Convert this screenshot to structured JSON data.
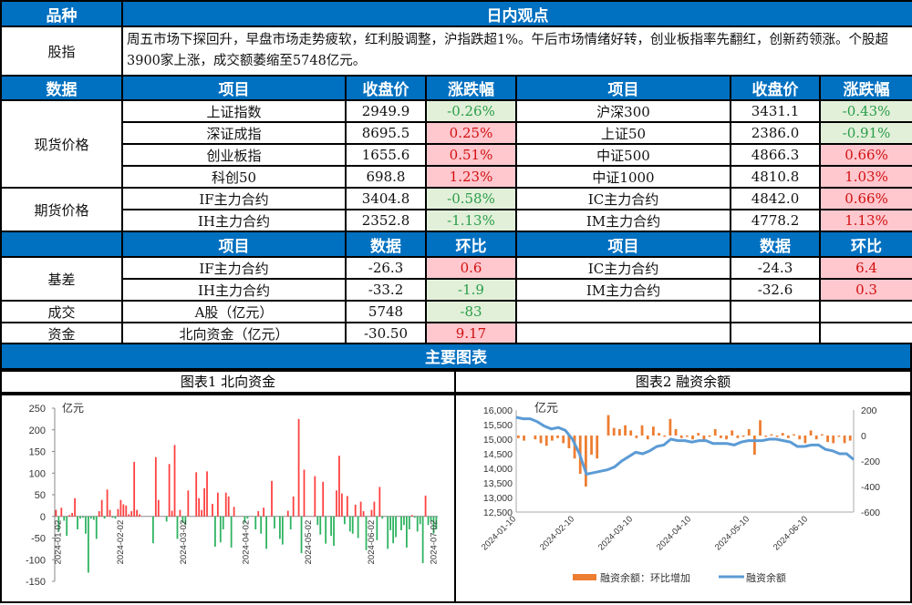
{
  "header": {
    "col1": "品种",
    "col2": "日内观点"
  },
  "view": {
    "label": "股指",
    "text": "周五市场下探回升，早盘市场走势疲软，红利股调整，沪指跌超1%。午后市场情绪好转，创业板指率先翻红，创新药领涨。个股超3900家上涨，成交额萎缩至5748亿元。"
  },
  "data_header": {
    "c1": "数据",
    "c2": "项目",
    "c3": "收盘价",
    "c4": "涨跌幅",
    "c5": "项目",
    "c6": "收盘价",
    "c7": "涨跌幅"
  },
  "spot": {
    "label": "现货价格",
    "rows": [
      {
        "a": "上证指数",
        "ap": "2949.9",
        "ac": "-0.26%",
        "b": "沪深300",
        "bp": "3431.1",
        "bc": "-0.43%"
      },
      {
        "a": "深证成指",
        "ap": "8695.5",
        "ac": "0.25%",
        "b": "上证50",
        "bp": "2386.0",
        "bc": "-0.91%"
      },
      {
        "a": "创业板指",
        "ap": "1655.6",
        "ac": "0.51%",
        "b": "中证500",
        "bp": "4866.3",
        "bc": "0.66%"
      },
      {
        "a": "科创50",
        "ap": "698.8",
        "ac": "1.23%",
        "b": "中证1000",
        "bp": "4810.8",
        "bc": "1.03%"
      }
    ]
  },
  "futures": {
    "label": "期货价格",
    "rows": [
      {
        "a": "IF主力合约",
        "ap": "3404.8",
        "ac": "-0.58%",
        "b": "IC主力合约",
        "bp": "4842.0",
        "bc": "0.66%"
      },
      {
        "a": "IH主力合约",
        "ap": "2352.8",
        "ac": "-1.13%",
        "b": "IM主力合约",
        "bp": "4778.2",
        "bc": "1.13%"
      }
    ]
  },
  "basis_header": {
    "c2": "项目",
    "c3": "数据",
    "c4": "环比",
    "c5": "项目",
    "c6": "数据",
    "c7": "环比"
  },
  "basis": {
    "label": "基差",
    "rows": [
      {
        "a": "IF主力合约",
        "av": "-26.3",
        "ac": "0.6",
        "b": "IC主力合约",
        "bv": "-24.3",
        "bc": "6.4"
      },
      {
        "a": "IH主力合约",
        "av": "-33.2",
        "ac": "-1.9",
        "b": "IM主力合约",
        "bv": "-32.6",
        "bc": "0.3"
      }
    ]
  },
  "volume": {
    "label": "成交",
    "item": "A股（亿元）",
    "value": "5748",
    "change": "-83"
  },
  "capital": {
    "label": "资金",
    "item": "北向资金（亿元）",
    "value": "-30.50",
    "change": "9.17"
  },
  "section_title": "主要图表",
  "chart_data": [
    {
      "type": "bar",
      "title": "图表1 北向资金",
      "ylabel": "亿元",
      "ylim": [
        -150,
        250
      ],
      "yticks": [
        250,
        200,
        150,
        100,
        50,
        0,
        -50,
        -100,
        -150
      ],
      "xticks": [
        "2024-01-02",
        "2024-02-02",
        "2024-03-02",
        "2024-04-02",
        "2024-05-02",
        "2024-06-02",
        "2024-07-02"
      ],
      "colors": {
        "pos": "#ff4040",
        "neg": "#2db360"
      },
      "values": [
        15,
        -35,
        20,
        -10,
        -45,
        3,
        8,
        42,
        -30,
        -5,
        -3,
        -40,
        -130,
        -5,
        -8,
        -52,
        12,
        38,
        -5,
        62,
        15,
        -3,
        -5,
        17,
        38,
        28,
        25,
        5,
        12,
        126,
        15,
        5,
        0,
        0,
        0,
        0,
        -62,
        137,
        38,
        0,
        0,
        -12,
        121,
        13,
        165,
        -52,
        15,
        -15,
        -20,
        60,
        0,
        0,
        102,
        42,
        15,
        65,
        104,
        0,
        29,
        -70,
        55,
        -60,
        -30,
        55,
        46,
        -72,
        22,
        0,
        0,
        0,
        -15,
        -5,
        0,
        0,
        -30,
        12,
        -40,
        20,
        -75,
        0,
        82,
        -28,
        0,
        -52,
        -65,
        0,
        13,
        -30,
        46,
        0,
        225,
        -85,
        108,
        0,
        0,
        0,
        93,
        -20,
        -42,
        80,
        -63,
        0,
        -45,
        -68,
        60,
        140,
        53,
        -18,
        47,
        -35,
        -40,
        27,
        -50,
        34,
        12,
        -78,
        0,
        15,
        34,
        -55,
        68,
        -5,
        0,
        -75,
        -32,
        -62,
        -48,
        0,
        -32,
        -20,
        -72,
        -30,
        3,
        -3,
        -35,
        -18,
        -108,
        48,
        -20,
        -12,
        -40,
        -30
      ]
    },
    {
      "type": "line",
      "title": "图表2 融资余额",
      "ylabel": "亿元",
      "ylim": [
        12500,
        16000
      ],
      "y2lim": [
        -600,
        200
      ],
      "yticks": [
        "16,000",
        "15,500",
        "15,000",
        "14,500",
        "14,000",
        "13,500",
        "13,000",
        "12,500"
      ],
      "y2ticks": [
        "200",
        "0",
        "-200",
        "-400",
        "-600"
      ],
      "xticks": [
        "2024-01-10",
        "2024-02-10",
        "2024-03-10",
        "2024-04-10",
        "2024-05-10",
        "2024-06-10"
      ],
      "legend": [
        "融资余额：环比增加",
        "融资余额"
      ],
      "colors": {
        "bar": "#ed7d31",
        "line": "#5b9bd5"
      },
      "line": [
        15750,
        15700,
        15700,
        15600,
        15450,
        15350,
        15400,
        15300,
        15000,
        14500,
        13800,
        13850,
        13900,
        13950,
        14050,
        14250,
        14400,
        14550,
        14500,
        14600,
        14750,
        14800,
        15000,
        14950,
        14950,
        14900,
        14950,
        14950,
        14850,
        14850,
        14850,
        14800,
        14900,
        14950,
        14950,
        14950,
        15000,
        15000,
        14950,
        14900,
        14750,
        14750,
        14800,
        14800,
        14650,
        14600,
        14500,
        14500,
        14300
      ],
      "bars": [
        -20,
        -40,
        0,
        -30,
        -60,
        -80,
        -40,
        -20,
        -60,
        -100,
        -180,
        -300,
        -400,
        -150,
        -180,
        0,
        160,
        60,
        50,
        80,
        40,
        -20,
        80,
        -30,
        70,
        20,
        -10,
        130,
        50,
        -20,
        -10,
        -30,
        20,
        -40,
        -10,
        50,
        -20,
        -30,
        40,
        -20,
        -10,
        50,
        -150,
        120,
        -10,
        10,
        -10,
        20,
        -20,
        10,
        -30,
        -60,
        40,
        -30,
        10,
        -50,
        -60,
        -10,
        -60,
        -40
      ]
    }
  ]
}
